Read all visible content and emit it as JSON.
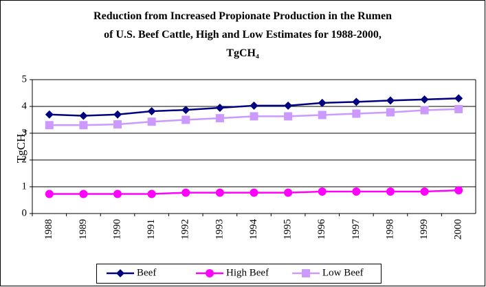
{
  "chart_data": {
    "type": "line",
    "title": "Reduction from Increased Propionate Production in the Rumen of U.S. Beef Cattle, High and Low Estimates for 1988-2000, TgCH₄",
    "y_label": "TgCH₄",
    "categories": [
      "1988",
      "1989",
      "1990",
      "1991",
      "1992",
      "1993",
      "1994",
      "1995",
      "1996",
      "1997",
      "1998",
      "1999",
      "2000"
    ],
    "series": [
      {
        "name": "Beef",
        "color": "#000080",
        "marker": "diamond",
        "values": [
          3.7,
          3.65,
          3.7,
          3.82,
          3.87,
          3.95,
          4.03,
          4.03,
          4.13,
          4.17,
          4.22,
          4.26,
          4.3
        ]
      },
      {
        "name": "High Beef",
        "color": "#ff00ff",
        "marker": "circle",
        "values": [
          0.73,
          0.73,
          0.73,
          0.73,
          0.78,
          0.78,
          0.78,
          0.78,
          0.82,
          0.82,
          0.82,
          0.82,
          0.87
        ]
      },
      {
        "name": "Low Beef",
        "color": "#cc99ff",
        "marker": "square",
        "values": [
          3.3,
          3.3,
          3.33,
          3.43,
          3.5,
          3.56,
          3.63,
          3.63,
          3.68,
          3.73,
          3.78,
          3.86,
          3.9
        ]
      }
    ],
    "ylim": [
      0,
      5
    ],
    "yticks": [
      0,
      1,
      2,
      3,
      4,
      5
    ],
    "grid": true,
    "legend": "bottom"
  }
}
